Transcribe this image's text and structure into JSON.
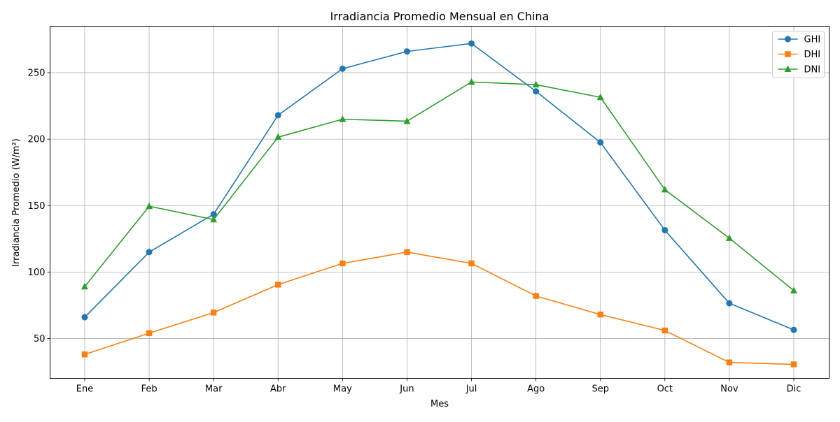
{
  "chart_data": {
    "type": "line",
    "title": "Irradiancia Promedio Mensual en China",
    "xlabel": "Mes",
    "ylabel": "Irradiancia Promedio (W/m²)",
    "categories": [
      "Ene",
      "Feb",
      "Mar",
      "Abr",
      "May",
      "Jun",
      "Jul",
      "Ago",
      "Sep",
      "Oct",
      "Nov",
      "Dic"
    ],
    "ylim": [
      20,
      285
    ],
    "yticks": [
      50,
      100,
      150,
      200,
      250
    ],
    "grid": true,
    "legend_position": "top-right",
    "series": [
      {
        "name": "GHI",
        "color": "#1f77b4",
        "marker": "circle",
        "values": [
          66,
          115,
          143.5,
          218,
          253,
          266,
          272,
          236,
          197.5,
          131.5,
          76.5,
          56.5
        ]
      },
      {
        "name": "DHI",
        "color": "#ff7f0e",
        "marker": "square",
        "values": [
          38,
          54,
          69.5,
          90.5,
          106.5,
          115,
          106.5,
          82,
          68,
          56,
          32,
          30.5
        ]
      },
      {
        "name": "DNI",
        "color": "#2ca02c",
        "marker": "triangle",
        "values": [
          89,
          149.5,
          139.5,
          201.5,
          215,
          213.5,
          243,
          241,
          231.5,
          162,
          125.5,
          86
        ]
      }
    ]
  }
}
